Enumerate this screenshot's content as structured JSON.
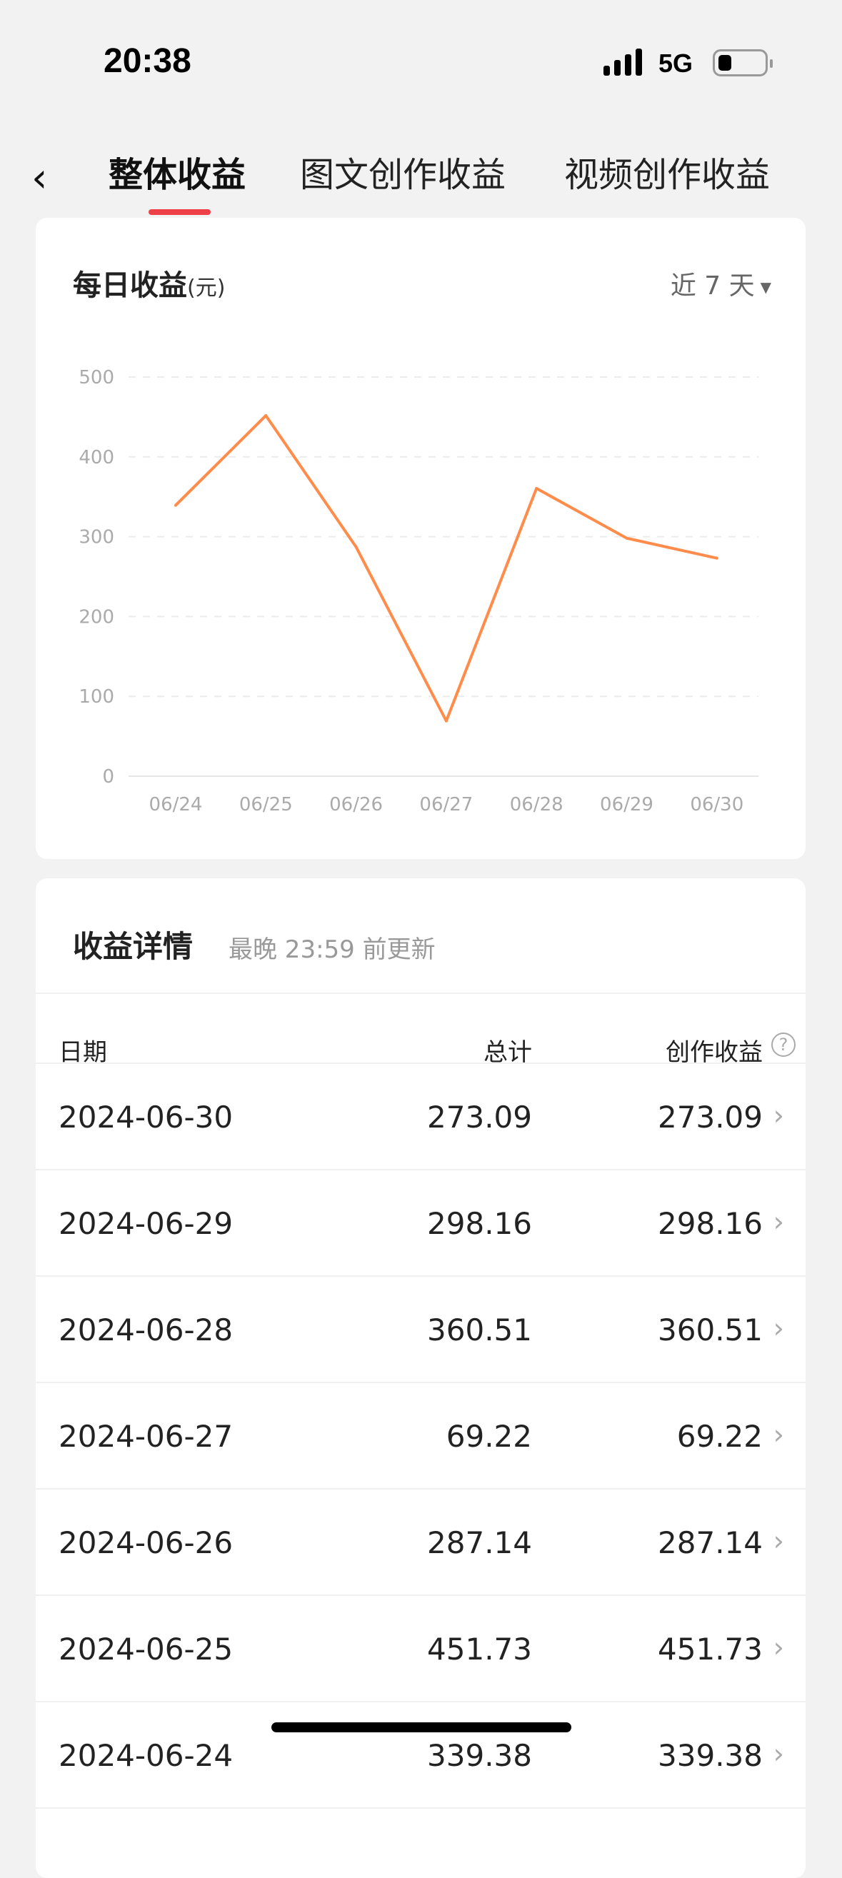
{
  "status_bar": {
    "time": "20:38",
    "network": "5G",
    "battery_level": 0.2
  },
  "nav": {
    "back_icon": "chevron-left-icon",
    "tabs": [
      {
        "label": "整体收益",
        "active": true
      },
      {
        "label": "图文创作收益",
        "active": false
      },
      {
        "label": "视频创作收益",
        "active": false
      }
    ],
    "accent": "#ee4047"
  },
  "daily": {
    "title": "每日收益",
    "unit": "(元)",
    "range": "近 7 天"
  },
  "chart_data": {
    "type": "line",
    "categories": [
      "06/24",
      "06/25",
      "06/26",
      "06/27",
      "06/28",
      "06/29",
      "06/30"
    ],
    "values": [
      339.38,
      451.73,
      287.14,
      69.22,
      360.51,
      298.16,
      273.09
    ],
    "yticks": [
      0,
      100,
      200,
      300,
      400,
      500
    ],
    "ylim": [
      0,
      500
    ],
    "grid": true,
    "color": "#ff8c4a"
  },
  "details": {
    "title": "收益详情",
    "subtitle": "最晚 23:59 前更新",
    "headers": {
      "date": "日期",
      "total": "总计",
      "creation": "创作收益"
    },
    "rows": [
      {
        "date": "2024-06-30",
        "total": "273.09",
        "creation": "273.09"
      },
      {
        "date": "2024-06-29",
        "total": "298.16",
        "creation": "298.16"
      },
      {
        "date": "2024-06-28",
        "total": "360.51",
        "creation": "360.51"
      },
      {
        "date": "2024-06-27",
        "total": "69.22",
        "creation": "69.22"
      },
      {
        "date": "2024-06-26",
        "total": "287.14",
        "creation": "287.14"
      },
      {
        "date": "2024-06-25",
        "total": "451.73",
        "creation": "451.73"
      },
      {
        "date": "2024-06-24",
        "total": "339.38",
        "creation": "339.38"
      }
    ]
  }
}
